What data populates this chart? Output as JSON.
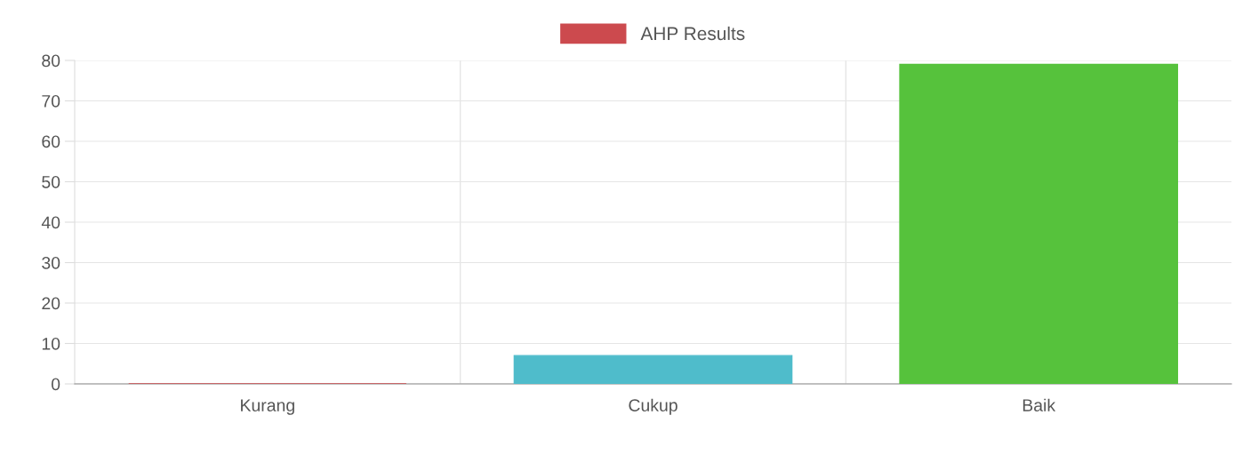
{
  "chart_data": {
    "type": "bar",
    "categories": [
      "Kurang",
      "Cukup",
      "Baik"
    ],
    "series": [
      {
        "name": "AHP Results",
        "color": "#cc4a4e",
        "colors": [
          "#cc4a4e",
          "#4fbccb",
          "#56c23c"
        ],
        "values": [
          0,
          7,
          79
        ]
      }
    ],
    "ylim": [
      0,
      80
    ],
    "yticks": [
      0,
      10,
      20,
      30,
      40,
      50,
      60,
      70,
      80
    ],
    "grid": true,
    "legend": "top"
  }
}
